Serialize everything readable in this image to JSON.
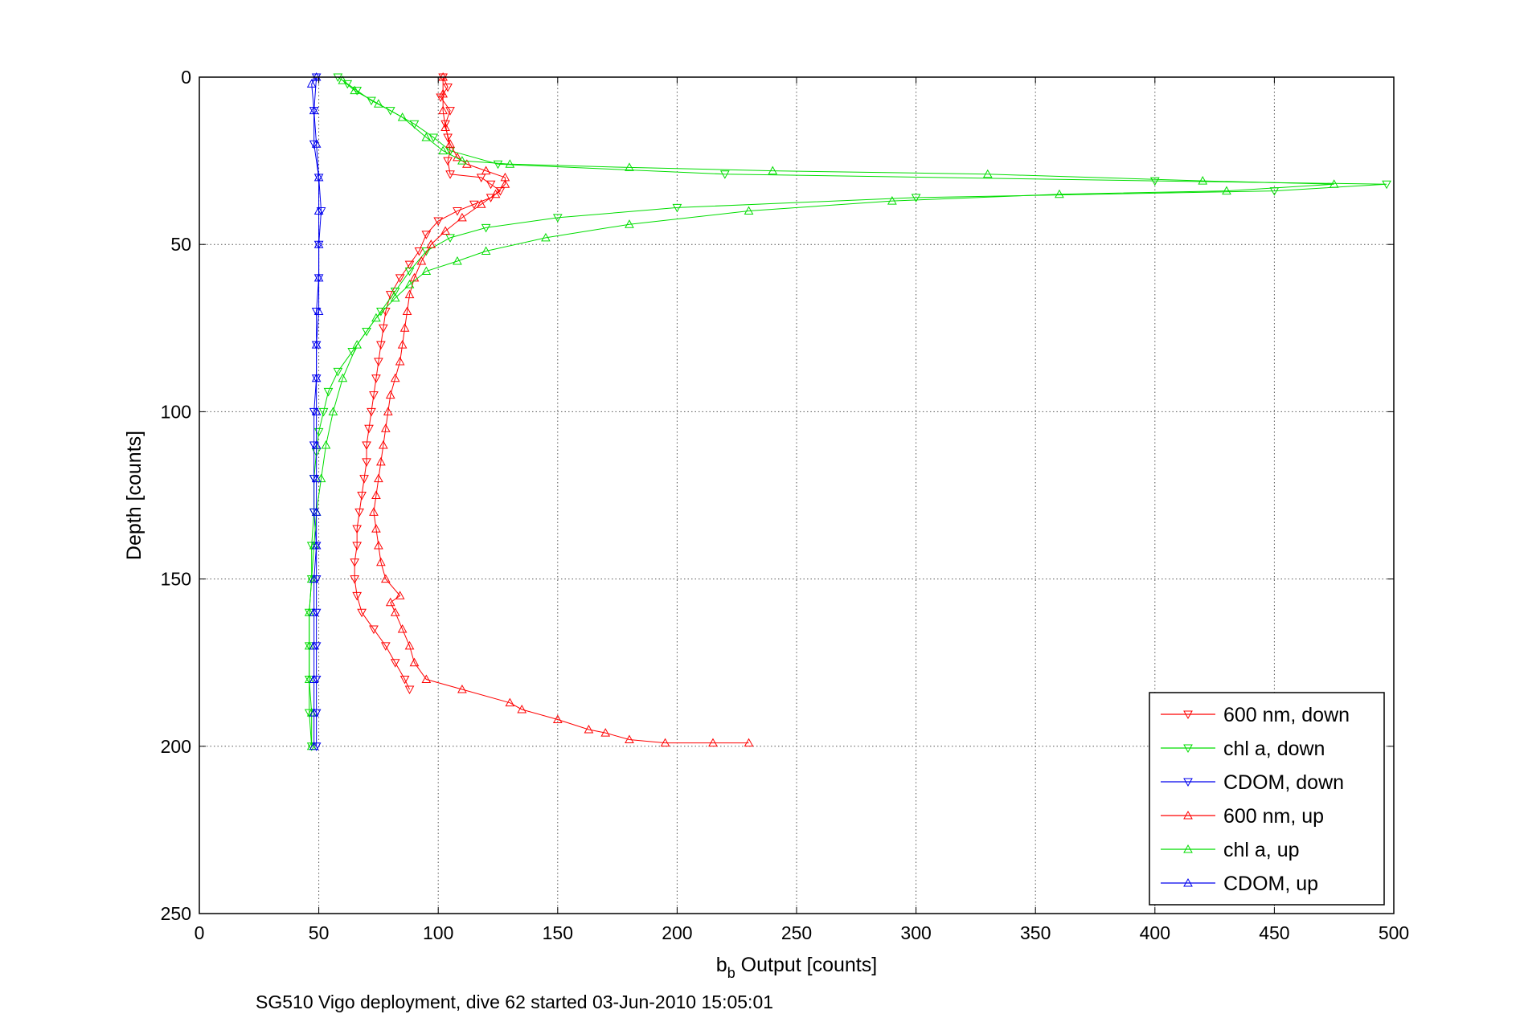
{
  "chart_data": {
    "type": "scatter",
    "title": "",
    "xlabel_main": "b",
    "xlabel_sub": "b",
    "xlabel_rest": " Output [counts]",
    "ylabel": "Depth [counts]",
    "caption": "SG510 Vigo deployment, dive 62 started 03-Jun-2010 15:05:01",
    "xlim": [
      0,
      500
    ],
    "ylim": [
      0,
      250
    ],
    "y_reversed": true,
    "grid": true,
    "legend_position": "bottom-right",
    "xticks": [
      "0",
      "50",
      "100",
      "150",
      "200",
      "250",
      "300",
      "350",
      "400",
      "450",
      "500"
    ],
    "yticks": [
      "0",
      "50",
      "100",
      "150",
      "200",
      "250"
    ],
    "series": [
      {
        "name": "600 nm, down",
        "color": "#ff0000",
        "marker": "triangle-down",
        "points": [
          [
            102,
            0
          ],
          [
            104,
            3
          ],
          [
            101,
            6
          ],
          [
            105,
            10
          ],
          [
            103,
            14
          ],
          [
            104,
            18
          ],
          [
            105,
            22
          ],
          [
            104,
            25
          ],
          [
            105,
            29
          ],
          [
            118,
            30
          ],
          [
            122,
            32
          ],
          [
            126,
            34
          ],
          [
            122,
            36
          ],
          [
            115,
            38
          ],
          [
            108,
            40
          ],
          [
            100,
            43
          ],
          [
            95,
            47
          ],
          [
            92,
            52
          ],
          [
            88,
            56
          ],
          [
            84,
            60
          ],
          [
            80,
            65
          ],
          [
            78,
            70
          ],
          [
            77,
            75
          ],
          [
            76,
            80
          ],
          [
            75,
            85
          ],
          [
            74,
            90
          ],
          [
            73,
            95
          ],
          [
            72,
            100
          ],
          [
            71,
            105
          ],
          [
            70,
            110
          ],
          [
            70,
            115
          ],
          [
            69,
            120
          ],
          [
            68,
            125
          ],
          [
            67,
            130
          ],
          [
            66,
            135
          ],
          [
            66,
            140
          ],
          [
            65,
            145
          ],
          [
            65,
            150
          ],
          [
            66,
            155
          ],
          [
            68,
            160
          ],
          [
            73,
            165
          ],
          [
            78,
            170
          ],
          [
            82,
            175
          ],
          [
            86,
            180
          ],
          [
            88,
            183
          ]
        ]
      },
      {
        "name": "chl a, down",
        "color": "#00dd00",
        "marker": "triangle-down",
        "points": [
          [
            58,
            0
          ],
          [
            62,
            2
          ],
          [
            66,
            4
          ],
          [
            72,
            7
          ],
          [
            80,
            10
          ],
          [
            90,
            14
          ],
          [
            98,
            18
          ],
          [
            105,
            22
          ],
          [
            125,
            26
          ],
          [
            220,
            29
          ],
          [
            400,
            31
          ],
          [
            497,
            32
          ],
          [
            450,
            34
          ],
          [
            300,
            36
          ],
          [
            200,
            39
          ],
          [
            150,
            42
          ],
          [
            120,
            45
          ],
          [
            105,
            48
          ],
          [
            95,
            52
          ],
          [
            88,
            58
          ],
          [
            82,
            64
          ],
          [
            76,
            70
          ],
          [
            70,
            76
          ],
          [
            64,
            82
          ],
          [
            58,
            88
          ],
          [
            54,
            94
          ],
          [
            52,
            100
          ],
          [
            50,
            106
          ],
          [
            49,
            112
          ],
          [
            48,
            120
          ],
          [
            48,
            130
          ],
          [
            47,
            140
          ],
          [
            47,
            150
          ],
          [
            46,
            160
          ],
          [
            46,
            170
          ],
          [
            46,
            180
          ],
          [
            46,
            190
          ],
          [
            47,
            200
          ]
        ]
      },
      {
        "name": "CDOM, down",
        "color": "#0000ee",
        "marker": "triangle-down",
        "points": [
          [
            49,
            0
          ],
          [
            48,
            10
          ],
          [
            48,
            20
          ],
          [
            50,
            30
          ],
          [
            51,
            40
          ],
          [
            50,
            50
          ],
          [
            50,
            60
          ],
          [
            49,
            70
          ],
          [
            49,
            80
          ],
          [
            49,
            90
          ],
          [
            48,
            100
          ],
          [
            48,
            110
          ],
          [
            48,
            120
          ],
          [
            48,
            130
          ],
          [
            49,
            140
          ],
          [
            49,
            150
          ],
          [
            49,
            160
          ],
          [
            49,
            170
          ],
          [
            49,
            180
          ],
          [
            49,
            190
          ],
          [
            49,
            200
          ]
        ]
      },
      {
        "name": "600 nm, up",
        "color": "#ff0000",
        "marker": "triangle-up",
        "points": [
          [
            230,
            199
          ],
          [
            215,
            199
          ],
          [
            195,
            199
          ],
          [
            180,
            198
          ],
          [
            170,
            196
          ],
          [
            163,
            195
          ],
          [
            150,
            192
          ],
          [
            135,
            189
          ],
          [
            130,
            187
          ],
          [
            110,
            183
          ],
          [
            95,
            180
          ],
          [
            90,
            175
          ],
          [
            88,
            170
          ],
          [
            85,
            165
          ],
          [
            82,
            160
          ],
          [
            80,
            157
          ],
          [
            84,
            155
          ],
          [
            78,
            150
          ],
          [
            76,
            145
          ],
          [
            75,
            140
          ],
          [
            74,
            135
          ],
          [
            73,
            130
          ],
          [
            74,
            125
          ],
          [
            75,
            120
          ],
          [
            76,
            115
          ],
          [
            77,
            110
          ],
          [
            78,
            105
          ],
          [
            79,
            100
          ],
          [
            80,
            95
          ],
          [
            82,
            90
          ],
          [
            84,
            85
          ],
          [
            85,
            80
          ],
          [
            86,
            75
          ],
          [
            87,
            70
          ],
          [
            88,
            65
          ],
          [
            90,
            60
          ],
          [
            93,
            55
          ],
          [
            97,
            50
          ],
          [
            103,
            46
          ],
          [
            110,
            42
          ],
          [
            118,
            38
          ],
          [
            124,
            35
          ],
          [
            128,
            32
          ],
          [
            128,
            30
          ],
          [
            120,
            28
          ],
          [
            112,
            26
          ],
          [
            108,
            24
          ],
          [
            105,
            20
          ],
          [
            103,
            15
          ],
          [
            102,
            10
          ],
          [
            102,
            5
          ],
          [
            102,
            0
          ]
        ]
      },
      {
        "name": "chl a, up",
        "color": "#00dd00",
        "marker": "triangle-up",
        "points": [
          [
            47,
            200
          ],
          [
            47,
            190
          ],
          [
            46,
            180
          ],
          [
            46,
            170
          ],
          [
            46,
            160
          ],
          [
            47,
            150
          ],
          [
            48,
            140
          ],
          [
            49,
            130
          ],
          [
            51,
            120
          ],
          [
            53,
            110
          ],
          [
            56,
            100
          ],
          [
            60,
            90
          ],
          [
            66,
            80
          ],
          [
            74,
            72
          ],
          [
            82,
            66
          ],
          [
            88,
            62
          ],
          [
            95,
            58
          ],
          [
            108,
            55
          ],
          [
            120,
            52
          ],
          [
            145,
            48
          ],
          [
            180,
            44
          ],
          [
            230,
            40
          ],
          [
            290,
            37
          ],
          [
            360,
            35
          ],
          [
            430,
            34
          ],
          [
            475,
            32
          ],
          [
            420,
            31
          ],
          [
            330,
            29
          ],
          [
            240,
            28
          ],
          [
            180,
            27
          ],
          [
            130,
            26
          ],
          [
            110,
            25
          ],
          [
            102,
            22
          ],
          [
            95,
            18
          ],
          [
            85,
            12
          ],
          [
            75,
            8
          ],
          [
            65,
            4
          ],
          [
            60,
            1
          ]
        ]
      },
      {
        "name": "CDOM, up",
        "color": "#0000ee",
        "marker": "triangle-up",
        "points": [
          [
            48,
            200
          ],
          [
            48,
            190
          ],
          [
            48,
            180
          ],
          [
            48,
            170
          ],
          [
            48,
            160
          ],
          [
            48,
            150
          ],
          [
            49,
            140
          ],
          [
            49,
            130
          ],
          [
            49,
            120
          ],
          [
            49,
            110
          ],
          [
            49,
            100
          ],
          [
            49,
            90
          ],
          [
            49,
            80
          ],
          [
            50,
            70
          ],
          [
            50,
            60
          ],
          [
            50,
            50
          ],
          [
            50,
            40
          ],
          [
            50,
            30
          ],
          [
            49,
            20
          ],
          [
            48,
            10
          ],
          [
            47,
            2
          ],
          [
            49,
            0
          ]
        ]
      }
    ]
  }
}
